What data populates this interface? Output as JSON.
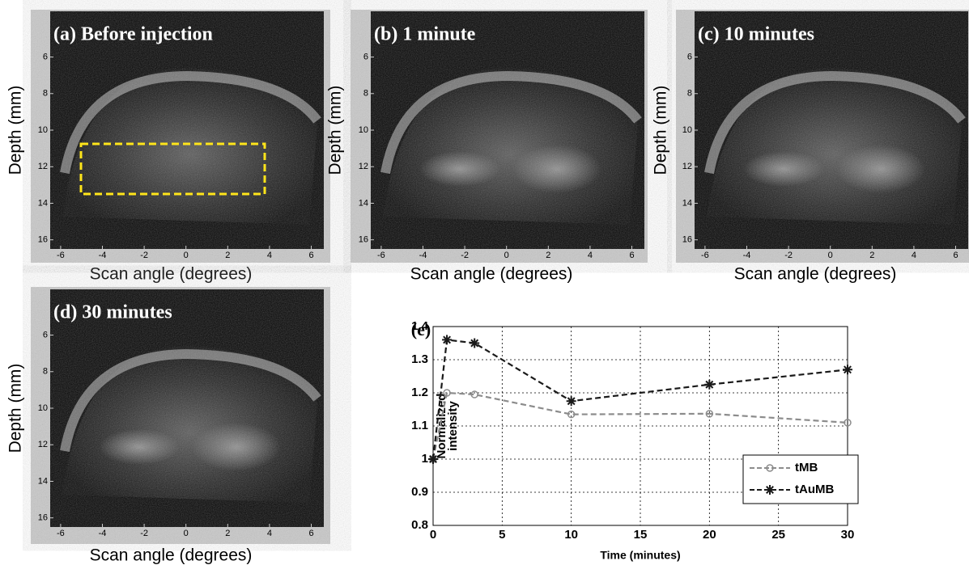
{
  "panels": [
    {
      "label": "(a) Before injection",
      "ylabel": "Depth (mm)",
      "xlabel": "Scan angle (degrees)",
      "xlim": [
        -6.5,
        6.6
      ],
      "ylim": [
        3.5,
        16.5
      ],
      "xticks": [
        -6,
        -4,
        -2,
        0,
        2,
        4,
        6
      ],
      "yticks": [
        6,
        8,
        10,
        12,
        14,
        16
      ]
    },
    {
      "label": "(b) 1 minute",
      "ylabel": "Depth (mm)",
      "xlabel": "Scan angle (degrees)",
      "xlim": [
        -6.5,
        6.6
      ],
      "ylim": [
        3.5,
        16.5
      ],
      "xticks": [
        -6,
        -4,
        -2,
        0,
        2,
        4,
        6
      ],
      "yticks": [
        6,
        8,
        10,
        12,
        14,
        16
      ]
    },
    {
      "label": "(c) 10 minutes",
      "ylabel": "Depth (mm)",
      "xlabel": "Scan angle (degrees)",
      "xlim": [
        -6.5,
        6.6
      ],
      "ylim": [
        3.5,
        16.5
      ],
      "xticks": [
        -6,
        -4,
        -2,
        0,
        2,
        4,
        6
      ],
      "yticks": [
        6,
        8,
        10,
        12,
        14,
        16
      ]
    },
    {
      "label": "(d) 30 minutes",
      "ylabel": "Depth (mm)",
      "xlabel": "Scan angle (degrees)",
      "xlim": [
        -6.5,
        6.6
      ],
      "ylim": [
        3.5,
        16.5
      ],
      "xticks": [
        -6,
        -4,
        -2,
        0,
        2,
        4,
        6
      ],
      "yticks": [
        6,
        8,
        10,
        12,
        14,
        16
      ]
    }
  ],
  "chart_data": {
    "type": "line",
    "title": "(e)",
    "xlabel": "Time (minutes)",
    "ylabel": [
      "Normalized",
      "intensity"
    ],
    "x": [
      0,
      1,
      3,
      10,
      20,
      30
    ],
    "series": [
      {
        "name": "tMB",
        "color": "#8c8c8c",
        "marker": "circle",
        "values": [
          1.0,
          1.2,
          1.195,
          1.135,
          1.137,
          1.11
        ]
      },
      {
        "name": "tAuMB",
        "color": "#1a1a1a",
        "marker": "star",
        "values": [
          1.0,
          1.36,
          1.35,
          1.175,
          1.225,
          1.27
        ]
      }
    ],
    "xlim": [
      0,
      30
    ],
    "ylim": [
      0.8,
      1.4
    ],
    "xticks": [
      0,
      5,
      10,
      15,
      20,
      25,
      30
    ],
    "yticks": [
      0.8,
      0.9,
      1,
      1.1,
      1.2,
      1.3,
      1.4
    ],
    "grid": true,
    "legend": "lower right"
  }
}
